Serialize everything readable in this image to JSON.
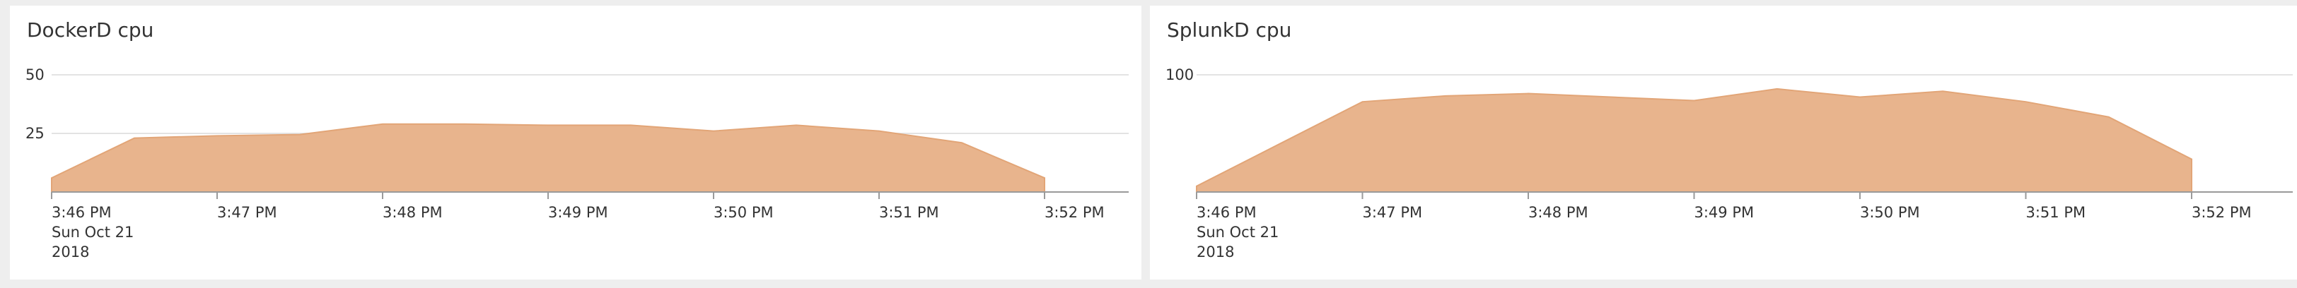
{
  "colors": {
    "area_fill": "#e8b48d",
    "area_stroke": "#e2a577",
    "gridline": "#e3e3e3",
    "axis": "#9a9a9a",
    "panel_bg": "#ffffff",
    "page_bg": "#eeeeee"
  },
  "panels": [
    {
      "title": "DockerD cpu",
      "chart_data": {
        "type": "area",
        "title": "DockerD cpu",
        "xlabel": "",
        "ylabel": "",
        "x": [
          "3:46 PM",
          "3:46:30 PM",
          "3:47 PM",
          "3:47:30 PM",
          "3:48 PM",
          "3:48:30 PM",
          "3:49 PM",
          "3:49:30 PM",
          "3:50 PM",
          "3:50:30 PM",
          "3:51 PM",
          "3:51:30 PM",
          "3:52 PM"
        ],
        "series": [
          {
            "values": [
              6,
              23,
              24,
              24.5,
              29,
              29,
              28.5,
              28.5,
              26,
              28.5,
              26,
              21,
              6
            ]
          }
        ],
        "y_ticks": [
          25,
          50
        ],
        "ylim": [
          0,
          50
        ],
        "x_ticks": [
          "3:46 PM",
          "3:47 PM",
          "3:48 PM",
          "3:49 PM",
          "3:50 PM",
          "3:51 PM",
          "3:52 PM"
        ],
        "x_sublabels": [
          "Sun Oct 21",
          "2018"
        ],
        "grid": true,
        "legend": "none"
      }
    },
    {
      "title": "SplunkD cpu",
      "chart_data": {
        "type": "area",
        "title": "SplunkD cpu",
        "xlabel": "",
        "ylabel": "",
        "x": [
          "3:46 PM",
          "3:46:30 PM",
          "3:47 PM",
          "3:47:30 PM",
          "3:48 PM",
          "3:48:30 PM",
          "3:49 PM",
          "3:49:30 PM",
          "3:50 PM",
          "3:50:30 PM",
          "3:51 PM",
          "3:51:30 PM",
          "3:52 PM"
        ],
        "series": [
          {
            "values": [
              5,
              41,
              77,
              82,
              84,
              81,
              78,
              88,
              81,
              86,
              77,
              64,
              28
            ]
          }
        ],
        "y_ticks": [
          100
        ],
        "ylim": [
          0,
          100
        ],
        "x_ticks": [
          "3:46 PM",
          "3:47 PM",
          "3:48 PM",
          "3:49 PM",
          "3:50 PM",
          "3:51 PM",
          "3:52 PM"
        ],
        "x_sublabels": [
          "Sun Oct 21",
          "2018"
        ],
        "grid": true,
        "legend": "none"
      }
    }
  ]
}
